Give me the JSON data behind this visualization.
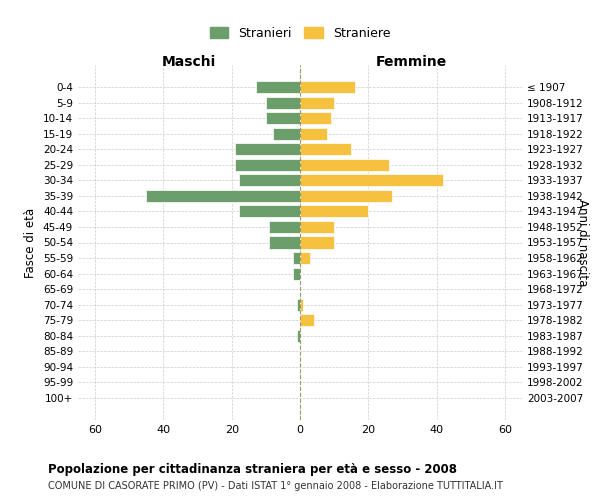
{
  "age_groups": [
    "0-4",
    "5-9",
    "10-14",
    "15-19",
    "20-24",
    "25-29",
    "30-34",
    "35-39",
    "40-44",
    "45-49",
    "50-54",
    "55-59",
    "60-64",
    "65-69",
    "70-74",
    "75-79",
    "80-84",
    "85-89",
    "90-94",
    "95-99",
    "100+"
  ],
  "birth_years": [
    "2003-2007",
    "1998-2002",
    "1993-1997",
    "1988-1992",
    "1983-1987",
    "1978-1982",
    "1973-1977",
    "1968-1972",
    "1963-1967",
    "1958-1962",
    "1953-1957",
    "1948-1952",
    "1943-1947",
    "1938-1942",
    "1933-1937",
    "1928-1932",
    "1923-1927",
    "1918-1922",
    "1913-1917",
    "1908-1912",
    "≤ 1907"
  ],
  "maschi": [
    13,
    10,
    10,
    8,
    19,
    19,
    18,
    45,
    18,
    9,
    9,
    2,
    2,
    0,
    1,
    0,
    1,
    0,
    0,
    0,
    0
  ],
  "femmine": [
    16,
    10,
    9,
    8,
    15,
    26,
    42,
    27,
    20,
    10,
    10,
    3,
    0,
    0,
    1,
    4,
    0,
    0,
    0,
    0,
    0
  ],
  "maschi_color": "#6b9e6b",
  "femmine_color": "#f5c13e",
  "bar_edge_color": "white",
  "grid_color": "#cccccc",
  "center_line_color": "#999966",
  "background_color": "#ffffff",
  "title": "Popolazione per cittadinanza straniera per età e sesso - 2008",
  "subtitle": "COMUNE DI CASORATE PRIMO (PV) - Dati ISTAT 1° gennaio 2008 - Elaborazione TUTTITALIA.IT",
  "xlabel_left": "Maschi",
  "xlabel_right": "Femmine",
  "ylabel_left": "Fasce di età",
  "ylabel_right": "Anni di nascita",
  "legend_maschi": "Stranieri",
  "legend_femmine": "Straniere",
  "xlim": 65,
  "figsize": [
    6.0,
    5.0
  ],
  "dpi": 100
}
